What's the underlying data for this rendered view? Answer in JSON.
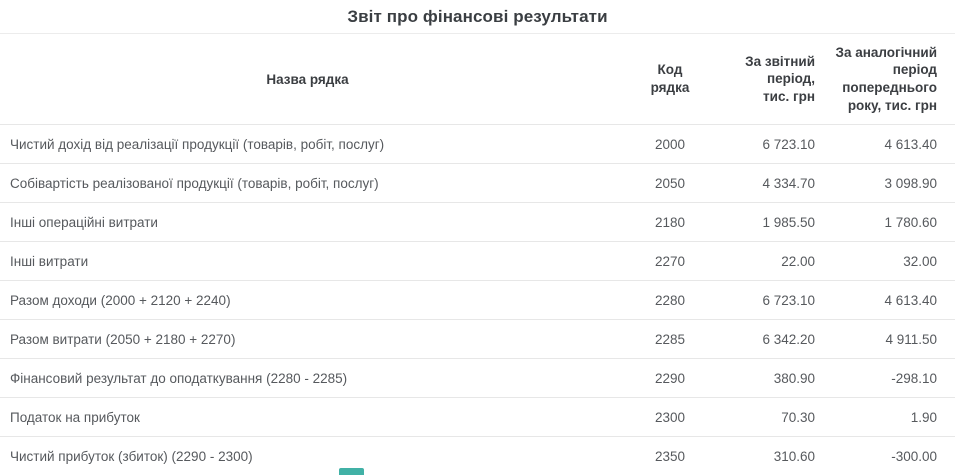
{
  "page": {
    "title": "Звіт про фінансові результати"
  },
  "table": {
    "headers": {
      "name": "Назва рядка",
      "code": "Код рядка",
      "current": "За звітний період, тис. грн",
      "previous": "За аналогічний період попереднього року, тис. грн"
    },
    "rows": [
      {
        "name": "Чистий дохід від реалізації продукції (товарів, робіт, послуг)",
        "code": "2000",
        "current": "6 723.10",
        "previous": "4 613.40"
      },
      {
        "name": "Собівартість реалізованої продукції (товарів, робіт, послуг)",
        "code": "2050",
        "current": "4 334.70",
        "previous": "3 098.90"
      },
      {
        "name": "Інші операційні витрати",
        "code": "2180",
        "current": "1 985.50",
        "previous": "1 780.60"
      },
      {
        "name": "Інші витрати",
        "code": "2270",
        "current": "22.00",
        "previous": "32.00"
      },
      {
        "name": "Разом доходи (2000 + 2120 + 2240)",
        "code": "2280",
        "current": "6 723.10",
        "previous": "4 613.40"
      },
      {
        "name": "Разом витрати (2050 + 2180 + 2270)",
        "code": "2285",
        "current": "6 342.20",
        "previous": "4 911.50"
      },
      {
        "name": "Фінансовий результат до оподаткування (2280 - 2285)",
        "code": "2290",
        "current": "380.90",
        "previous": "-298.10"
      },
      {
        "name": "Податок на прибуток",
        "code": "2300",
        "current": "70.30",
        "previous": "1.90"
      },
      {
        "name": "Чистий прибуток (збиток) (2290 - 2300)",
        "code": "2350",
        "current": "310.60",
        "previous": "-300.00"
      }
    ]
  },
  "colors": {
    "accent_teal": "#41b1a6",
    "row_border": "#e7e7e7",
    "header_text": "#3b3e42",
    "body_text": "#56595d"
  }
}
